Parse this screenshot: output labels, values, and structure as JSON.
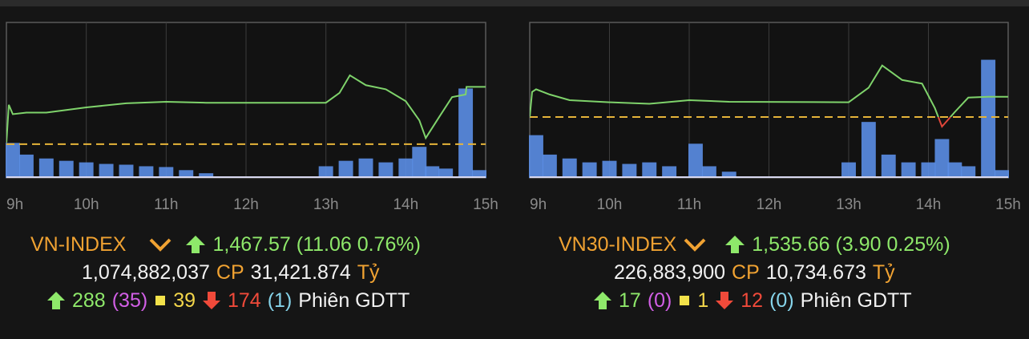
{
  "chart_data": [
    {
      "type": "line",
      "x": [
        9,
        9.03,
        9.08,
        9.25,
        9.5,
        10,
        10.5,
        11,
        11.5,
        13,
        13.17,
        13.3,
        13.5,
        13.75,
        14,
        14.17,
        14.25,
        14.42,
        14.58,
        14.75,
        14.76,
        15
      ],
      "values": [
        1456.8,
        1464.1,
        1462.3,
        1462.6,
        1462.6,
        1463.6,
        1464.4,
        1464.7,
        1464.5,
        1464.5,
        1466.4,
        1469.8,
        1467.9,
        1467.1,
        1464.8,
        1461.1,
        1457.7,
        1461.8,
        1465.6,
        1466.1,
        1467.57,
        1467.57
      ],
      "color": "#7fd36b",
      "down_color": "#e0463a",
      "reference": 1456.51,
      "reference_color": "#e6b43a",
      "xlim": [
        9,
        15
      ],
      "ylim": [
        1450,
        1480
      ],
      "xticks": [
        {
          "value": 9,
          "label": "9h"
        },
        {
          "value": 10,
          "label": "10h"
        },
        {
          "value": 11,
          "label": "11h"
        },
        {
          "value": 12,
          "label": "12h"
        },
        {
          "value": 13,
          "label": "13h"
        },
        {
          "value": 14,
          "label": "14h"
        },
        {
          "value": 15,
          "label": "15h"
        }
      ],
      "grid": true,
      "volume": {
        "x": [
          9.08,
          9.25,
          9.5,
          9.75,
          10,
          10.25,
          10.5,
          10.75,
          11,
          11.25,
          11.5,
          13,
          13.25,
          13.5,
          13.75,
          14,
          14.17,
          14.33,
          14.5,
          14.75,
          14.92
        ],
        "values": [
          45,
          30,
          25,
          22,
          20,
          18,
          17,
          15,
          14,
          10,
          6,
          15,
          22,
          25,
          20,
          25,
          40,
          15,
          12,
          115,
          10
        ],
        "color": "#5b8ee6",
        "ylim": [
          0,
          200
        ]
      },
      "summary": {
        "name": "VN-INDEX",
        "price_change": "1,467.57 (11.06 0.76%)",
        "volume": "1,074,882,037",
        "volume_unit": "CP",
        "value": "31,421.874",
        "value_unit": "Tỷ",
        "advances": 288,
        "ceiling": "(35)",
        "unchanged": 39,
        "declines": 174,
        "floor": "(1)",
        "session": "Phiên GDTT"
      }
    },
    {
      "type": "line",
      "x": [
        9,
        9.03,
        9.08,
        9.25,
        9.5,
        10,
        10.5,
        11,
        11.5,
        13,
        13.25,
        13.42,
        13.67,
        13.92,
        14.08,
        14.17,
        14.33,
        14.5,
        14.75,
        15
      ],
      "values": [
        1531.76,
        1536.6,
        1537.1,
        1536.1,
        1535.0,
        1534.6,
        1534.3,
        1535.0,
        1534.7,
        1534.6,
        1537.4,
        1541.7,
        1538.9,
        1538.2,
        1533.5,
        1529.9,
        1532.7,
        1535.5,
        1535.66,
        1535.66
      ],
      "color": "#7fd36b",
      "down_color": "#e0463a",
      "reference": 1531.76,
      "reference_color": "#e6b43a",
      "xlim": [
        9,
        15
      ],
      "ylim": [
        1520,
        1550
      ],
      "xticks": [
        {
          "value": 9,
          "label": "9h"
        },
        {
          "value": 10,
          "label": "10h"
        },
        {
          "value": 11,
          "label": "11h"
        },
        {
          "value": 12,
          "label": "12h"
        },
        {
          "value": 13,
          "label": "13h"
        },
        {
          "value": 14,
          "label": "14h"
        },
        {
          "value": 15,
          "label": "15h"
        }
      ],
      "grid": true,
      "volume": {
        "x": [
          9.08,
          9.25,
          9.5,
          9.75,
          10,
          10.25,
          10.5,
          10.75,
          11.08,
          11.25,
          11.5,
          13,
          13.25,
          13.5,
          13.75,
          14,
          14.17,
          14.33,
          14.5,
          14.75,
          14.92
        ],
        "values": [
          55,
          30,
          25,
          20,
          22,
          18,
          20,
          15,
          44,
          15,
          8,
          20,
          72,
          30,
          20,
          20,
          50,
          20,
          15,
          152,
          10
        ],
        "color": "#5b8ee6",
        "ylim": [
          0,
          200
        ]
      },
      "summary": {
        "name": "VN30-INDEX",
        "price_change": "1,535.66 (3.90 0.25%)",
        "volume": "226,883,900",
        "volume_unit": "CP",
        "value": "10,734.673",
        "value_unit": "Tỷ",
        "advances": 17,
        "ceiling": "(0)",
        "unchanged": 1,
        "declines": 12,
        "floor": "(0)",
        "session": "Phiên GDTT"
      }
    }
  ]
}
